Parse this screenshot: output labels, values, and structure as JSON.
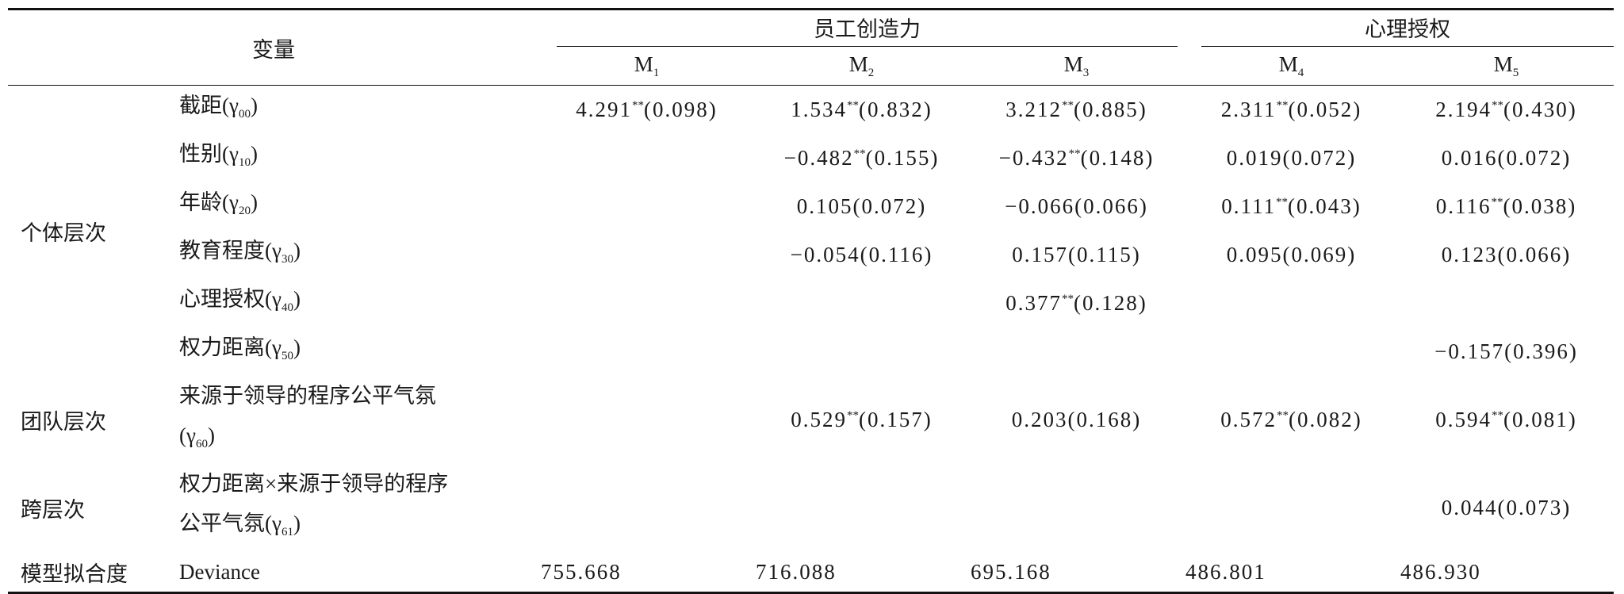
{
  "table": {
    "header": {
      "variable": "变量",
      "groups": [
        {
          "label": "员工创造力",
          "span": 3
        },
        {
          "label": "心理授权",
          "span": 2
        }
      ],
      "models": [
        [
          "M",
          {
            "sub": "1"
          }
        ],
        [
          "M",
          {
            "sub": "2"
          }
        ],
        [
          "M",
          {
            "sub": "3"
          }
        ],
        [
          "M",
          {
            "sub": "4"
          }
        ],
        [
          "M",
          {
            "sub": "5"
          }
        ]
      ]
    },
    "levels": [
      {
        "label": "个体层次",
        "rows": [
          {
            "variable": [
              [
                "截距(γ",
                {
                  "sub": "00"
                },
                ")"
              ]
            ],
            "cells": [
              [
                "4.291",
                {
                  "sup": "**"
                },
                "(0.098)"
              ],
              [
                "1.534",
                {
                  "sup": "**"
                },
                "(0.832)"
              ],
              [
                "3.212",
                {
                  "sup": "**"
                },
                "(0.885)"
              ],
              [
                "2.311",
                {
                  "sup": "**"
                },
                "(0.052)"
              ],
              [
                "2.194",
                {
                  "sup": "**"
                },
                "(0.430)"
              ]
            ]
          },
          {
            "variable": [
              [
                "性别(γ",
                {
                  "sub": "10"
                },
                ")"
              ]
            ],
            "cells": [
              null,
              [
                "−0.482",
                {
                  "sup": "**"
                },
                "(0.155)"
              ],
              [
                "−0.432",
                {
                  "sup": "**"
                },
                "(0.148)"
              ],
              [
                "0.019(0.072)"
              ],
              [
                "0.016(0.072)"
              ]
            ]
          },
          {
            "variable": [
              [
                "年龄(γ",
                {
                  "sub": "20"
                },
                ")"
              ]
            ],
            "cells": [
              null,
              [
                "0.105(0.072)"
              ],
              [
                "−0.066(0.066)"
              ],
              [
                "0.111",
                {
                  "sup": "**"
                },
                "(0.043)"
              ],
              [
                "0.116",
                {
                  "sup": "**"
                },
                "(0.038)"
              ]
            ]
          },
          {
            "variable": [
              [
                "教育程度(γ",
                {
                  "sub": "30"
                },
                ")"
              ]
            ],
            "cells": [
              null,
              [
                "−0.054(0.116)"
              ],
              [
                "0.157(0.115)"
              ],
              [
                "0.095(0.069)"
              ],
              [
                "0.123(0.066)"
              ]
            ]
          },
          {
            "variable": [
              [
                "心理授权(γ",
                {
                  "sub": "40"
                },
                ")"
              ]
            ],
            "cells": [
              null,
              null,
              [
                "0.377",
                {
                  "sup": "**"
                },
                "(0.128)"
              ],
              null,
              null
            ]
          },
          {
            "variable": [
              [
                "权力距离(γ",
                {
                  "sub": "50"
                },
                ")"
              ]
            ],
            "cells": [
              null,
              null,
              null,
              null,
              [
                "−0.157(0.396)"
              ]
            ]
          }
        ]
      },
      {
        "label": "团队层次",
        "rows": [
          {
            "variable": [
              [
                "来源于领导的程序公平气氛"
              ],
              [
                "(γ",
                {
                  "sub": "60"
                },
                ")"
              ]
            ],
            "cells": [
              null,
              [
                "0.529",
                {
                  "sup": "**"
                },
                "(0.157)"
              ],
              [
                "0.203(0.168)"
              ],
              [
                "0.572",
                {
                  "sup": "**"
                },
                "(0.082)"
              ],
              [
                "0.594",
                {
                  "sup": "**"
                },
                "(0.081)"
              ]
            ]
          }
        ]
      },
      {
        "label": "跨层次",
        "rows": [
          {
            "variable": [
              [
                "权力距离×来源于领导的程序"
              ],
              [
                "公平气氛(γ",
                {
                  "sub": "61"
                },
                ")"
              ]
            ],
            "cells": [
              null,
              null,
              null,
              null,
              [
                "0.044(0.073)"
              ]
            ]
          }
        ]
      },
      {
        "label": "模型拟合度",
        "fit": true,
        "rows": [
          {
            "variable": [
              [
                "Deviance"
              ]
            ],
            "cells": [
              [
                "755.668"
              ],
              [
                "716.088"
              ],
              [
                "695.168"
              ],
              [
                "486.801"
              ],
              [
                "486.930"
              ]
            ]
          }
        ]
      }
    ]
  }
}
